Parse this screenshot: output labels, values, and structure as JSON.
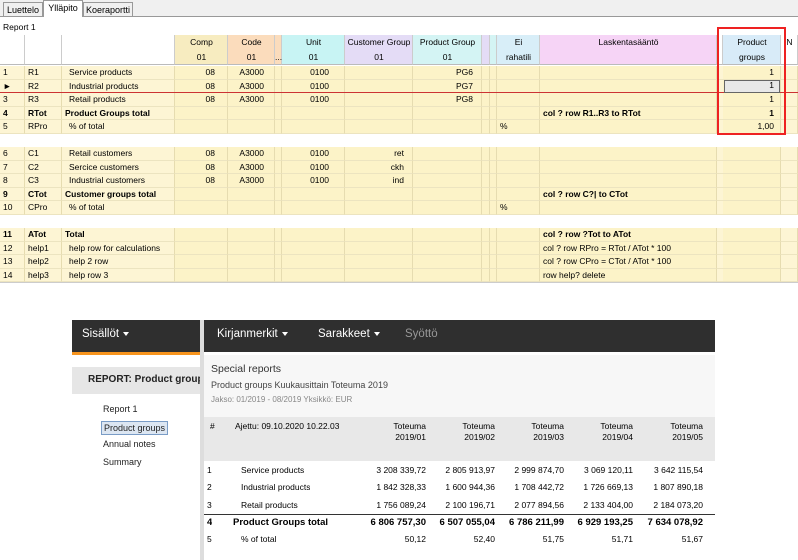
{
  "tabs": [
    "Luettelo",
    "Ylläpito",
    "Koeraportti"
  ],
  "report_title": "Report 1",
  "grid": {
    "headers": {
      "comp": {
        "top": "Comp",
        "bottom": "01"
      },
      "code2": {
        "top": "Code",
        "bottom": "01"
      },
      "dots": {
        "bottom": "..."
      },
      "unit": {
        "top": "Unit",
        "bottom": "01"
      },
      "customer_group": {
        "top": "Customer Group",
        "bottom": "01"
      },
      "product_group": {
        "top": "Product Group",
        "bottom": "01"
      },
      "ei": {
        "top": "Ei",
        "bottom": "rahatili"
      },
      "rule": {
        "top": "Laskentasääntö"
      },
      "product": {
        "top": "Product",
        "bottom": "groups"
      },
      "n": {
        "top": "N"
      }
    },
    "rows": [
      {
        "num": "1",
        "code": "R1",
        "name": "Service products",
        "comp": "08",
        "code2": "A3000",
        "unit": "0100",
        "product_group": "PG6",
        "product": "1"
      },
      {
        "num": "►",
        "code": "R2",
        "name": "Industrial products",
        "comp": "08",
        "code2": "A3000",
        "unit": "0100",
        "product_group": "PG7",
        "product": "1"
      },
      {
        "num": "3",
        "code": "R3",
        "name": "Retail products",
        "comp": "08",
        "code2": "A3000",
        "unit": "0100",
        "product_group": "PG8",
        "product": "1"
      },
      {
        "num": "4",
        "code": "RTot",
        "name": "Product Groups total",
        "rule": "col ? row R1..R3 to RTot",
        "product": "1",
        "bold": true
      },
      {
        "num": "5",
        "code": "RPro",
        "name": "% of total",
        "ei": "%",
        "product": "1,00"
      },
      {
        "num": "6",
        "code": "C1",
        "name": "Retail customers",
        "comp": "08",
        "code2": "A3000",
        "unit": "0100",
        "customer_group": "ret"
      },
      {
        "num": "7",
        "code": "C2",
        "name": "Sercice customers",
        "comp": "08",
        "code2": "A3000",
        "unit": "0100",
        "customer_group": "ckh"
      },
      {
        "num": "8",
        "code": "C3",
        "name": "Industrial customers",
        "comp": "08",
        "code2": "A3000",
        "unit": "0100",
        "customer_group": "ind"
      },
      {
        "num": "9",
        "code": "CTot",
        "name": "Customer groups total",
        "rule": "col ? row C?| to CTot",
        "bold": true
      },
      {
        "num": "10",
        "code": "CPro",
        "name": "% of total",
        "ei": "%"
      },
      {
        "num": "11",
        "code": "ATot",
        "name": "Total",
        "rule": "col ? row ?Tot to ATot",
        "bold": true
      },
      {
        "num": "12",
        "code": "help1",
        "name": "help row for calculations",
        "rule": "col ? row RPro = RTot / ATot * 100"
      },
      {
        "num": "13",
        "code": "help2",
        "name": "help 2 row",
        "rule": "col ? row CPro = CTot / ATot * 100"
      },
      {
        "num": "14",
        "code": "help3",
        "name": "help row 3",
        "rule": "row help? delete"
      }
    ]
  },
  "nav": {
    "left": "Sisällöt",
    "items": [
      {
        "label": "Kirjanmerkit",
        "dropdown": true
      },
      {
        "label": "Sarakkeet",
        "dropdown": true
      },
      {
        "label": "Syöttö",
        "disabled": true
      }
    ]
  },
  "sidebar": {
    "heading": "REPORT: Product groups",
    "links": [
      "Report 1",
      "Product groups",
      "Annual notes",
      "Summary"
    ],
    "selected": 1
  },
  "report": {
    "title": "Special reports",
    "subtitle": "Product groups Kuukausittain Toteuma 2019",
    "period": "Jakso: 01/2019 - 08/2019 Yksikkö: EUR",
    "hash": "#",
    "run": "Ajettu: 09.10.2020 10.22.03",
    "columns": [
      {
        "line1": "Toteuma",
        "line2": "2019/01"
      },
      {
        "line1": "Toteuma",
        "line2": "2019/02"
      },
      {
        "line1": "Toteuma",
        "line2": "2019/03"
      },
      {
        "line1": "Toteuma",
        "line2": "2019/04"
      },
      {
        "line1": "Toteuma",
        "line2": "2019/05"
      }
    ],
    "rows": [
      {
        "num": "1",
        "label": "Service products",
        "values": [
          "3 208 339,72",
          "2 805 913,97",
          "2 999 874,70",
          "3 069 120,11",
          "3 642 115,54"
        ]
      },
      {
        "num": "2",
        "label": "Industrial products",
        "values": [
          "1 842 328,33",
          "1 600 944,36",
          "1 708 442,72",
          "1 726 669,13",
          "1 807 890,18"
        ]
      },
      {
        "num": "3",
        "label": "Retail products",
        "values": [
          "1 756 089,24",
          "2 100 196,71",
          "2 077 894,56",
          "2 133 404,00",
          "2 184 073,20"
        ]
      },
      {
        "num": "4",
        "label": "Product Groups total",
        "values": [
          "6 806 757,30",
          "6 507 055,04",
          "6 786 211,99",
          "6 929 193,25",
          "7 634 078,92"
        ],
        "bold": true
      },
      {
        "num": "5",
        "label": "% of total",
        "values": [
          "50,12",
          "52,40",
          "51,75",
          "51,71",
          "51,67"
        ]
      }
    ]
  }
}
